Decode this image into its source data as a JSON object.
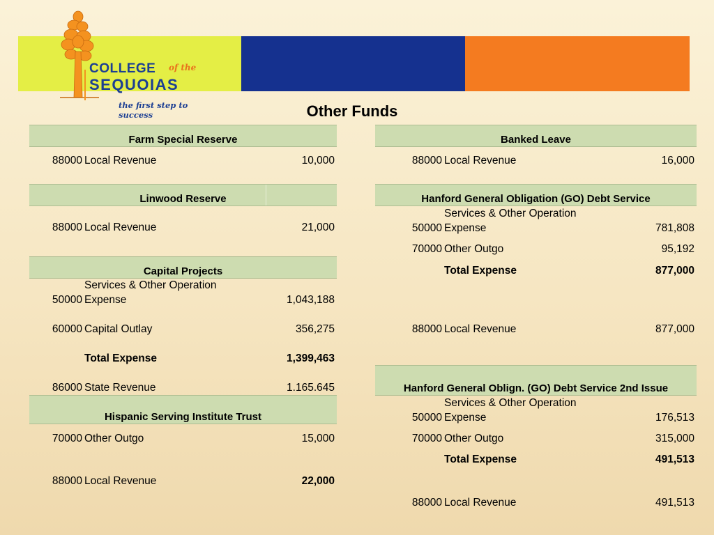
{
  "header": {
    "logo_line1": "COLLEGE",
    "logo_ofthe": "of the",
    "logo_line2": "SEQUOIAS",
    "tagline": "the first step to success",
    "brand_colors": {
      "green": "#e4ee45",
      "blue": "#15318f",
      "orange": "#f47b20",
      "tree": "#f4921f"
    }
  },
  "title": "Other Funds",
  "left": {
    "farm": {
      "header": "Farm Special Reserve",
      "rows": [
        {
          "code": "88000",
          "desc": "Local Revenue",
          "amount": "10,000"
        }
      ]
    },
    "linwood": {
      "header": "Linwood Reserve",
      "rows": [
        {
          "code": "88000",
          "desc": "Local Revenue",
          "amount": "21,000"
        }
      ]
    },
    "capital": {
      "header": "Capital Projects",
      "rows": [
        {
          "code": "50000",
          "desc1": "Services & Other Operation",
          "desc2": "Expense",
          "amount": "1,043,188"
        },
        {
          "code": "60000",
          "desc": "Capital Outlay",
          "amount": "356,275"
        },
        {
          "desc": "Total Expense",
          "amount": "1,399,463"
        },
        {
          "code": "86000",
          "desc": "State Revenue",
          "amount": "1.165.645"
        }
      ]
    },
    "hispanic": {
      "header": "Hispanic Serving Institute Trust",
      "rows": [
        {
          "code": "70000",
          "desc": "Other Outgo",
          "amount": "15,000"
        },
        {
          "code": "88000",
          "desc": "Local Revenue",
          "amount": "22,000"
        }
      ]
    }
  },
  "right": {
    "banked": {
      "header": "Banked Leave",
      "rows": [
        {
          "code": "88000",
          "desc": "Local Revenue",
          "amount": "16,000"
        }
      ]
    },
    "go": {
      "header": "Hanford General Obligation (GO) Debt Service",
      "rows": [
        {
          "code": "50000",
          "desc1": "Services & Other Operation",
          "desc2": "Expense",
          "amount": "781,808"
        },
        {
          "code": "70000",
          "desc": "Other Outgo",
          "amount": "95,192"
        },
        {
          "desc": "Total Expense",
          "amount": "877,000"
        },
        {
          "code": "88000",
          "desc": "Local Revenue",
          "amount": "877,000"
        }
      ]
    },
    "go2": {
      "header": "Hanford General Oblign. (GO) Debt Service  2nd Issue",
      "rows": [
        {
          "code": "50000",
          "desc1": "Services & Other Operation",
          "desc2": "Expense",
          "amount": "176,513"
        },
        {
          "code": "70000",
          "desc": "Other Outgo",
          "amount": "315,000"
        },
        {
          "desc": "Total Expense",
          "amount": "491,513"
        },
        {
          "code": "88000",
          "desc": "Local Revenue",
          "amount": "491,513"
        }
      ]
    }
  }
}
